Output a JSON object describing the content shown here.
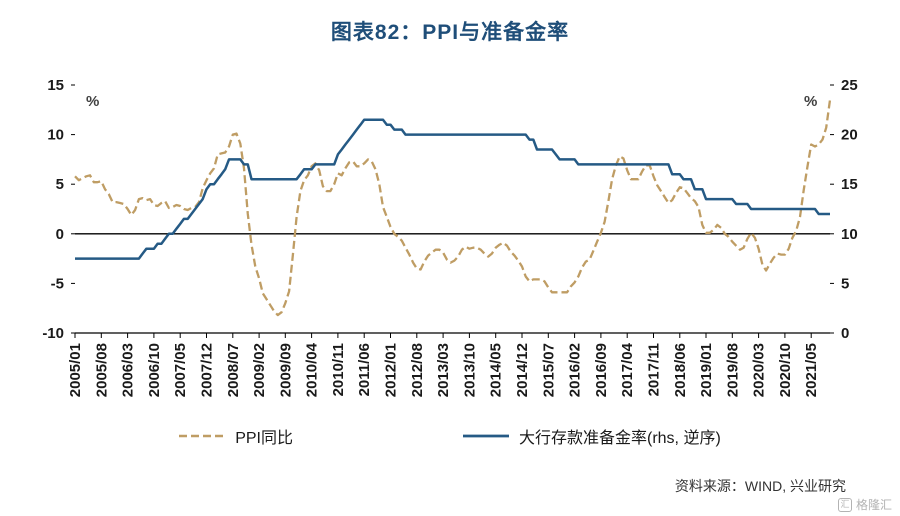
{
  "title": "图表82：PPI与准备金率",
  "source": "资料来源：WIND, 兴业研究",
  "watermark": {
    "text": "格隆汇",
    "icon_glyph": "汇"
  },
  "legend": {
    "ppi": "PPI同比",
    "rrr": "大行存款准备金率(rhs, 逆序)"
  },
  "colors": {
    "title": "#1f4e79",
    "ppi_line": "#bf9d64",
    "rrr_line": "#255a85",
    "axis": "#000000"
  },
  "chart_data": {
    "type": "line",
    "title": "图表82：PPI与准备金率",
    "start_month": "2005/01",
    "left_axis": {
      "label": "%",
      "range": [
        -10,
        15
      ],
      "ticks": [
        15,
        10,
        5,
        0,
        -5,
        -10
      ]
    },
    "right_axis": {
      "label": "%",
      "range": [
        0,
        25
      ],
      "ticks": [
        25,
        20,
        15,
        10,
        5,
        0
      ]
    },
    "x_tick_step": 7,
    "x_tick_labels": [
      "2005/01",
      "2005/08",
      "2006/03",
      "2006/10",
      "2007/05",
      "2007/12",
      "2008/07",
      "2009/02",
      "2009/09",
      "2010/04",
      "2010/11",
      "2011/06",
      "2012/01",
      "2012/08",
      "2013/03",
      "2013/10",
      "2014/05",
      "2014/12",
      "2015/07",
      "2016/02",
      "2016/09",
      "2017/04",
      "2017/11",
      "2018/06",
      "2019/01",
      "2019/08",
      "2020/03",
      "2020/10",
      "2021/05"
    ],
    "series": [
      {
        "name": "PPI同比",
        "axis": "left",
        "style": "dashed",
        "color": "#bf9d64",
        "values": [
          5.8,
          5.4,
          5.6,
          5.8,
          5.9,
          5.2,
          5.2,
          5.3,
          4.5,
          4.0,
          3.2,
          3.2,
          3.1,
          3.0,
          2.5,
          1.9,
          2.4,
          3.5,
          3.6,
          3.4,
          3.5,
          2.9,
          2.8,
          3.1,
          3.3,
          2.6,
          2.7,
          2.9,
          2.8,
          2.5,
          2.4,
          2.6,
          2.7,
          3.2,
          4.6,
          5.4,
          6.1,
          6.6,
          8.0,
          8.1,
          8.2,
          8.8,
          10.0,
          10.1,
          9.1,
          6.6,
          2.0,
          -1.1,
          -3.3,
          -4.5,
          -6.0,
          -6.6,
          -7.2,
          -7.8,
          -8.2,
          -7.9,
          -7.0,
          -5.8,
          -2.1,
          1.7,
          4.3,
          5.4,
          5.9,
          6.8,
          7.1,
          6.4,
          4.8,
          4.3,
          4.3,
          5.0,
          6.1,
          5.9,
          6.6,
          7.2,
          7.3,
          6.8,
          6.8,
          7.1,
          7.5,
          7.3,
          6.5,
          5.0,
          2.7,
          1.7,
          0.7,
          0.0,
          -0.3,
          -0.7,
          -1.4,
          -2.1,
          -2.9,
          -3.5,
          -3.6,
          -2.8,
          -2.2,
          -1.9,
          -1.6,
          -1.6,
          -1.9,
          -2.6,
          -2.9,
          -2.7,
          -2.3,
          -1.6,
          -1.3,
          -1.5,
          -1.4,
          -1.4,
          -1.6,
          -2.0,
          -2.3,
          -2.0,
          -1.4,
          -1.1,
          -0.9,
          -1.2,
          -1.8,
          -2.2,
          -2.7,
          -3.3,
          -4.3,
          -4.8,
          -4.6,
          -4.6,
          -4.6,
          -4.8,
          -5.4,
          -5.9,
          -5.9,
          -5.9,
          -5.9,
          -5.9,
          -5.3,
          -4.9,
          -4.3,
          -3.4,
          -2.8,
          -2.6,
          -1.7,
          -0.8,
          0.1,
          1.2,
          3.3,
          5.5,
          6.9,
          7.8,
          7.6,
          6.4,
          5.5,
          5.5,
          5.5,
          6.3,
          6.9,
          6.9,
          5.8,
          4.9,
          4.3,
          3.7,
          3.1,
          3.4,
          4.1,
          4.7,
          4.6,
          4.1,
          3.6,
          3.3,
          2.7,
          0.9,
          0.1,
          0.1,
          0.4,
          0.9,
          0.6,
          0.0,
          -0.3,
          -0.8,
          -1.2,
          -1.6,
          -1.4,
          -0.5,
          0.1,
          -0.4,
          -1.5,
          -3.1,
          -3.7,
          -3.0,
          -2.4,
          -2.0,
          -2.1,
          -2.1,
          -1.5,
          -0.4,
          0.3,
          1.7,
          4.4,
          6.8,
          9.0,
          8.8,
          9.0,
          9.5,
          10.7,
          13.5
        ]
      },
      {
        "name": "大行存款准备金率(rhs, 逆序)",
        "axis": "right",
        "style": "solid",
        "color": "#255a85",
        "values": [
          7.5,
          7.5,
          7.5,
          7.5,
          7.5,
          7.5,
          7.5,
          7.5,
          7.5,
          7.5,
          7.5,
          7.5,
          7.5,
          7.5,
          7.5,
          7.5,
          7.5,
          7.5,
          8.0,
          8.5,
          8.5,
          8.5,
          9.0,
          9.0,
          9.5,
          10.0,
          10.0,
          10.5,
          11.0,
          11.5,
          11.5,
          12.0,
          12.5,
          13.0,
          13.5,
          14.5,
          15.0,
          15.0,
          15.5,
          16.0,
          16.5,
          17.5,
          17.5,
          17.5,
          17.5,
          17.0,
          17.0,
          15.5,
          15.5,
          15.5,
          15.5,
          15.5,
          15.5,
          15.5,
          15.5,
          15.5,
          15.5,
          15.5,
          15.5,
          15.5,
          16.0,
          16.5,
          16.5,
          16.5,
          17.0,
          17.0,
          17.0,
          17.0,
          17.0,
          17.0,
          18.0,
          18.5,
          19.0,
          19.5,
          20.0,
          20.5,
          21.0,
          21.5,
          21.5,
          21.5,
          21.5,
          21.5,
          21.5,
          21.0,
          21.0,
          20.5,
          20.5,
          20.5,
          20.0,
          20.0,
          20.0,
          20.0,
          20.0,
          20.0,
          20.0,
          20.0,
          20.0,
          20.0,
          20.0,
          20.0,
          20.0,
          20.0,
          20.0,
          20.0,
          20.0,
          20.0,
          20.0,
          20.0,
          20.0,
          20.0,
          20.0,
          20.0,
          20.0,
          20.0,
          20.0,
          20.0,
          20.0,
          20.0,
          20.0,
          20.0,
          20.0,
          19.5,
          19.5,
          18.5,
          18.5,
          18.5,
          18.5,
          18.5,
          18.0,
          17.5,
          17.5,
          17.5,
          17.5,
          17.5,
          17.0,
          17.0,
          17.0,
          17.0,
          17.0,
          17.0,
          17.0,
          17.0,
          17.0,
          17.0,
          17.0,
          17.0,
          17.0,
          17.0,
          17.0,
          17.0,
          17.0,
          17.0,
          17.0,
          17.0,
          17.0,
          17.0,
          17.0,
          17.0,
          17.0,
          16.0,
          16.0,
          16.0,
          15.5,
          15.5,
          15.5,
          14.5,
          14.5,
          14.5,
          13.5,
          13.5,
          13.5,
          13.5,
          13.5,
          13.5,
          13.5,
          13.5,
          13.0,
          13.0,
          13.0,
          13.0,
          12.5,
          12.5,
          12.5,
          12.5,
          12.5,
          12.5,
          12.5,
          12.5,
          12.5,
          12.5,
          12.5,
          12.5,
          12.5,
          12.5,
          12.5,
          12.5,
          12.5,
          12.5,
          12.0,
          12.0,
          12.0,
          12.0
        ]
      }
    ]
  }
}
